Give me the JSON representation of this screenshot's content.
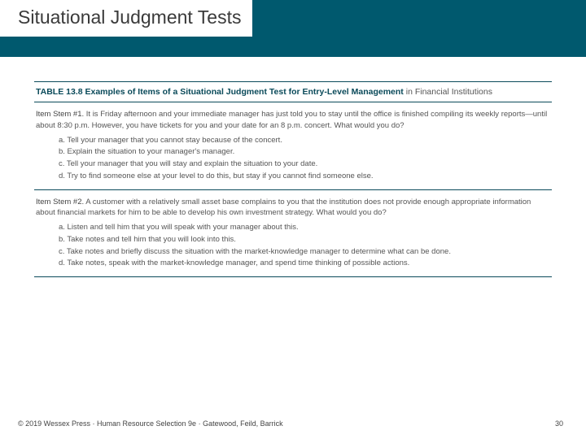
{
  "colors": {
    "header_bg": "#00596e",
    "title_text": "#3a3a3a",
    "rule": "#0a4a5a",
    "body_text": "#555555",
    "page_bg": "#ffffff"
  },
  "header": {
    "title": "Situational Judgment Tests"
  },
  "table": {
    "label": "TABLE 13.8",
    "title_main": "Examples of Items of a Situational Judgment Test for Entry-Level Management",
    "title_tail": " in Financial Institutions",
    "items": [
      {
        "stem_label": "Item Stem #1.",
        "stem_text": " It is Friday afternoon and your immediate manager has just told you to stay until the office is finished compiling its weekly reports—until about 8:30 p.m. However, you have tickets for you and your date for an 8 p.m. concert. What would you do?",
        "options": [
          "a. Tell your manager that you cannot stay because of the concert.",
          "b. Explain the situation to your manager's manager.",
          "c. Tell your manager that you will stay and explain the situation to your date.",
          "d. Try to find someone else at your level to do this, but stay if you cannot find someone else."
        ]
      },
      {
        "stem_label": "Item Stem #2.",
        "stem_text": " A customer with a relatively small asset base complains to you that the institution does not provide enough appropriate information about financial markets for him to be able to develop his own investment strategy. What would you do?",
        "options": [
          "a. Listen and tell him that you will speak with your manager about this.",
          "b. Take notes and tell him that you will look into this.",
          "c. Take notes and briefly discuss the situation with the market-knowledge manager to determine what can be done.",
          "d. Take notes, speak with the market-knowledge manager, and spend time thinking of possible actions."
        ]
      }
    ]
  },
  "footer": {
    "copyright": "© 2019 Wessex Press · Human Resource Selection 9e · Gatewood, Feild, Barrick",
    "page": "30"
  }
}
